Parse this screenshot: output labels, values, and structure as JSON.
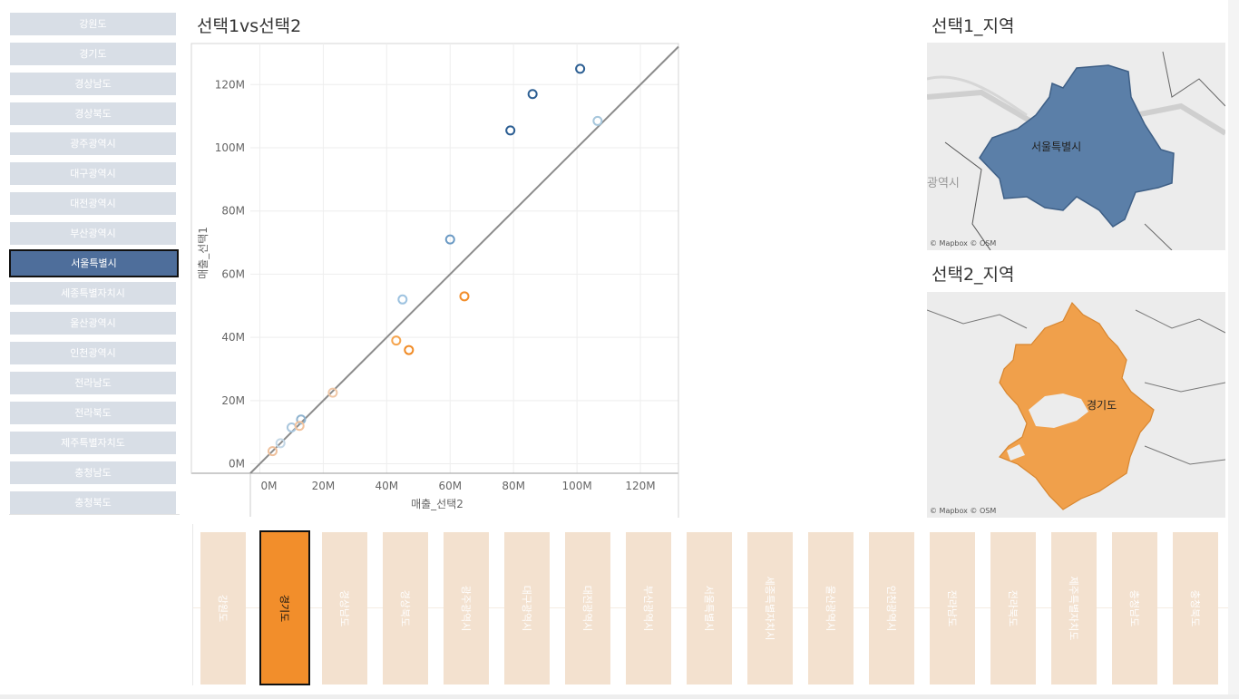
{
  "scatter_title": "선택1vs선택2",
  "map1_title": "선택1_지역",
  "map2_title": "선택2_지역",
  "left_list": {
    "items": [
      "강원도",
      "경기도",
      "경상남도",
      "경상북도",
      "광주광역시",
      "대구광역시",
      "대전광역시",
      "부산광역시",
      "서울특별시",
      "세종특별자치시",
      "울산광역시",
      "인천광역시",
      "전라남도",
      "전라북도",
      "제주특별자치도",
      "충청남도",
      "충청북도"
    ],
    "selected": "서울특별시"
  },
  "bottom_list": {
    "items": [
      "강원도",
      "경기도",
      "경상남도",
      "경상북도",
      "광주광역시",
      "대구광역시",
      "대전광역시",
      "부산광역시",
      "서울특별시",
      "세종특별자치시",
      "울산광역시",
      "인천광역시",
      "전라남도",
      "전라북도",
      "제주특별자치도",
      "충청남도",
      "충청북도"
    ],
    "selected": "경기도"
  },
  "map1": {
    "label": "서울특별시",
    "edge_text": "광역시",
    "credit": "© Mapbox © OSM",
    "fill": "#5b7fa8"
  },
  "map2": {
    "label": "경기도",
    "credit": "© Mapbox © OSM",
    "fill": "#f0a04b"
  },
  "colors": {
    "selected_left": "#4e6e9b",
    "selected_bottom": "#f28e2b",
    "unselected_left": "#d8dee6",
    "unselected_bottom": "#f3e1cf"
  },
  "chart_data": {
    "type": "scatter",
    "title": "선택1vs선택2",
    "xlabel": "매출_선택2",
    "ylabel": "매출_선택1",
    "xlim": [
      -3,
      132
    ],
    "ylim": [
      -3,
      133
    ],
    "x_ticks": [
      "0M",
      "20M",
      "40M",
      "60M",
      "80M",
      "100M",
      "120M"
    ],
    "y_ticks": [
      "0M",
      "20M",
      "40M",
      "60M",
      "80M",
      "100M",
      "120M"
    ],
    "grid": true,
    "reference_line": "y = x",
    "points": [
      {
        "x": 101,
        "y": 125,
        "color": "#2d5f93"
      },
      {
        "x": 86,
        "y": 117,
        "color": "#2d5f93"
      },
      {
        "x": 79,
        "y": 105.5,
        "color": "#2d5f93"
      },
      {
        "x": 106.5,
        "y": 108.5,
        "color": "#a7c7dc"
      },
      {
        "x": 60,
        "y": 71,
        "color": "#6b9ac4"
      },
      {
        "x": 45,
        "y": 52,
        "color": "#9ec3e0"
      },
      {
        "x": 13,
        "y": 14,
        "color": "#8fb3cf"
      },
      {
        "x": 10,
        "y": 11.5,
        "color": "#a9c6dd"
      },
      {
        "x": 6.5,
        "y": 6.5,
        "color": "#c3d7e6"
      },
      {
        "x": 64.5,
        "y": 53,
        "color": "#f28e2b"
      },
      {
        "x": 47,
        "y": 36,
        "color": "#f08a24"
      },
      {
        "x": 43,
        "y": 39,
        "color": "#f5a44d"
      },
      {
        "x": 12.5,
        "y": 12,
        "color": "#f2c29c"
      },
      {
        "x": 23,
        "y": 22.5,
        "color": "#f0c7a6"
      },
      {
        "x": 4,
        "y": 4,
        "color": "#eec09c"
      }
    ]
  }
}
